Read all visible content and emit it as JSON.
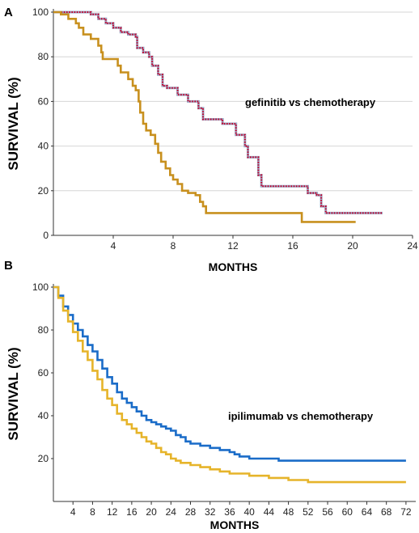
{
  "chart_data": [
    {
      "type": "line",
      "panel_label": "A",
      "annotation": "gefinitib vs chemotherapy",
      "xlabel": "MONTHS",
      "ylabel": "SURVIVAL (%)",
      "xlim": [
        0,
        24
      ],
      "ylim": [
        0,
        100
      ],
      "xticks": [
        4,
        8,
        12,
        16,
        20,
        24
      ],
      "yticks": [
        0,
        20,
        40,
        60,
        80,
        100
      ],
      "grid": "horizontal",
      "step": true,
      "series": [
        {
          "color": "#c80028",
          "style": "dotted",
          "points": [
            [
              0,
              100
            ],
            [
              2,
              100
            ],
            [
              2.5,
              99
            ],
            [
              3,
              97
            ],
            [
              3.5,
              95
            ],
            [
              4,
              93
            ],
            [
              4.5,
              91
            ],
            [
              5,
              90
            ],
            [
              5.5,
              89
            ],
            [
              5.6,
              84
            ],
            [
              6,
              82
            ],
            [
              6.4,
              80
            ],
            [
              6.6,
              76
            ],
            [
              7,
              72
            ],
            [
              7.3,
              67
            ],
            [
              7.6,
              66
            ],
            [
              8.2,
              66
            ],
            [
              8.3,
              63
            ],
            [
              9,
              60
            ],
            [
              9.7,
              57
            ],
            [
              10,
              52
            ],
            [
              10.8,
              52
            ],
            [
              11.3,
              50
            ],
            [
              12,
              50
            ],
            [
              12.2,
              45
            ],
            [
              12.8,
              40
            ],
            [
              13,
              35
            ],
            [
              13.7,
              27
            ],
            [
              13.9,
              22
            ],
            [
              15,
              22
            ],
            [
              15.6,
              22
            ],
            [
              16.3,
              22
            ],
            [
              16.8,
              22
            ],
            [
              17,
              19
            ],
            [
              17.6,
              18
            ],
            [
              17.9,
              13
            ],
            [
              18.2,
              10
            ],
            [
              20,
              10
            ],
            [
              22,
              10
            ]
          ]
        },
        {
          "color": "#c8901e",
          "style": "solid",
          "points": [
            [
              0,
              100
            ],
            [
              0.5,
              99
            ],
            [
              1,
              97
            ],
            [
              1.5,
              95
            ],
            [
              1.7,
              93
            ],
            [
              2,
              90
            ],
            [
              2.5,
              88
            ],
            [
              3,
              85
            ],
            [
              3.2,
              82
            ],
            [
              3.3,
              79
            ],
            [
              4,
              79
            ],
            [
              4.3,
              76
            ],
            [
              4.5,
              73
            ],
            [
              5,
              70
            ],
            [
              5.3,
              67
            ],
            [
              5.5,
              65
            ],
            [
              5.7,
              60
            ],
            [
              5.8,
              55
            ],
            [
              6,
              50
            ],
            [
              6.2,
              47
            ],
            [
              6.5,
              45
            ],
            [
              6.8,
              41
            ],
            [
              7,
              37
            ],
            [
              7.2,
              33
            ],
            [
              7.5,
              30
            ],
            [
              7.8,
              27
            ],
            [
              8,
              25
            ],
            [
              8.3,
              23
            ],
            [
              8.6,
              20
            ],
            [
              9,
              19
            ],
            [
              9.5,
              18
            ],
            [
              9.8,
              15
            ],
            [
              10,
              13
            ],
            [
              10.2,
              10
            ],
            [
              16.6,
              10
            ],
            [
              16.6,
              6
            ],
            [
              20.2,
              6
            ]
          ]
        }
      ]
    },
    {
      "type": "line",
      "panel_label": "B",
      "annotation": "ipilimumab vs chemotherapy",
      "xlabel": "MONTHS",
      "ylabel": "SURVIVAL (%)",
      "xlim": [
        0,
        74
      ],
      "ylim": [
        0,
        100
      ],
      "xticks": [
        4,
        8,
        12,
        16,
        20,
        24,
        28,
        32,
        36,
        40,
        44,
        48,
        52,
        56,
        60,
        64,
        68,
        72
      ],
      "yticks": [
        20,
        40,
        60,
        80,
        100
      ],
      "grid": "none",
      "step": true,
      "series": [
        {
          "color": "#1a6cc8",
          "style": "solid",
          "points": [
            [
              0,
              100
            ],
            [
              1,
              96
            ],
            [
              2,
              91
            ],
            [
              3,
              87
            ],
            [
              4,
              83
            ],
            [
              5,
              80
            ],
            [
              6,
              77
            ],
            [
              7,
              73
            ],
            [
              8,
              70
            ],
            [
              9,
              66
            ],
            [
              10,
              62
            ],
            [
              11,
              58
            ],
            [
              12,
              55
            ],
            [
              13,
              51
            ],
            [
              14,
              48
            ],
            [
              15,
              46
            ],
            [
              16,
              44
            ],
            [
              17,
              42
            ],
            [
              18,
              40
            ],
            [
              19,
              38
            ],
            [
              20,
              37
            ],
            [
              21,
              36
            ],
            [
              22,
              35
            ],
            [
              23,
              34
            ],
            [
              24,
              33
            ],
            [
              25,
              31
            ],
            [
              26,
              30
            ],
            [
              27,
              28
            ],
            [
              28,
              27
            ],
            [
              30,
              26
            ],
            [
              32,
              25
            ],
            [
              34,
              24
            ],
            [
              36,
              23
            ],
            [
              37,
              22
            ],
            [
              38,
              21
            ],
            [
              40,
              20
            ],
            [
              44,
              20
            ],
            [
              46,
              19
            ],
            [
              48,
              19
            ],
            [
              52,
              19
            ],
            [
              72,
              19
            ]
          ]
        },
        {
          "color": "#e6b42a",
          "style": "solid",
          "points": [
            [
              0,
              100
            ],
            [
              1,
              95
            ],
            [
              2,
              89
            ],
            [
              3,
              84
            ],
            [
              4,
              79
            ],
            [
              5,
              75
            ],
            [
              6,
              70
            ],
            [
              7,
              66
            ],
            [
              8,
              61
            ],
            [
              9,
              57
            ],
            [
              10,
              52
            ],
            [
              11,
              48
            ],
            [
              12,
              45
            ],
            [
              13,
              41
            ],
            [
              14,
              38
            ],
            [
              15,
              36
            ],
            [
              16,
              34
            ],
            [
              17,
              32
            ],
            [
              18,
              30
            ],
            [
              19,
              28
            ],
            [
              20,
              27
            ],
            [
              21,
              25
            ],
            [
              22,
              23
            ],
            [
              23,
              22
            ],
            [
              24,
              20
            ],
            [
              25,
              19
            ],
            [
              26,
              18
            ],
            [
              28,
              17
            ],
            [
              30,
              16
            ],
            [
              32,
              15
            ],
            [
              34,
              14
            ],
            [
              36,
              13
            ],
            [
              38,
              13
            ],
            [
              40,
              12
            ],
            [
              44,
              11
            ],
            [
              46,
              11
            ],
            [
              48,
              10
            ],
            [
              52,
              9
            ],
            [
              72,
              9
            ]
          ]
        }
      ]
    }
  ]
}
